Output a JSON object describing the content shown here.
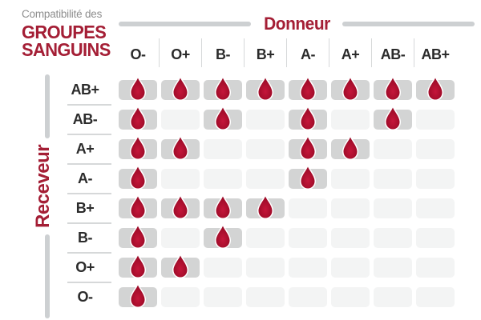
{
  "title": {
    "prefix": "Compatibilité des",
    "line1": "GROUPES",
    "line2": "SANGUINS"
  },
  "axes": {
    "donor_label": "Donneur",
    "receiver_label": "Receveur"
  },
  "chart_data": {
    "type": "table",
    "title": "Compatibilité des groupes sanguins",
    "columns_axis_label": "Donneur",
    "rows_axis_label": "Receveur",
    "columns": [
      "O-",
      "O+",
      "B-",
      "B+",
      "A-",
      "A+",
      "AB-",
      "AB+"
    ],
    "rows": [
      "AB+",
      "AB-",
      "A+",
      "A-",
      "B+",
      "B-",
      "O+",
      "O-"
    ],
    "marker": "blood-drop-icon",
    "matrix": [
      [
        1,
        1,
        1,
        1,
        1,
        1,
        1,
        1
      ],
      [
        1,
        0,
        1,
        0,
        1,
        0,
        1,
        0
      ],
      [
        1,
        1,
        0,
        0,
        1,
        1,
        0,
        0
      ],
      [
        1,
        0,
        0,
        0,
        1,
        0,
        0,
        0
      ],
      [
        1,
        1,
        1,
        1,
        0,
        0,
        0,
        0
      ],
      [
        1,
        0,
        1,
        0,
        0,
        0,
        0,
        0
      ],
      [
        1,
        1,
        0,
        0,
        0,
        0,
        0,
        0
      ],
      [
        1,
        0,
        0,
        0,
        0,
        0,
        0,
        0
      ]
    ]
  },
  "colors": {
    "accent_red": "#a41e35",
    "drop_light": "#c5163a",
    "drop_dark": "#9a0a26",
    "cell_active": "#d3d4d4",
    "cell_inactive": "#f3f4f4",
    "line_gray": "#cdd0d2",
    "separator_gray": "#d6d8d9",
    "text_dark": "#2b2b2b",
    "text_gray": "#8d8d8d"
  }
}
